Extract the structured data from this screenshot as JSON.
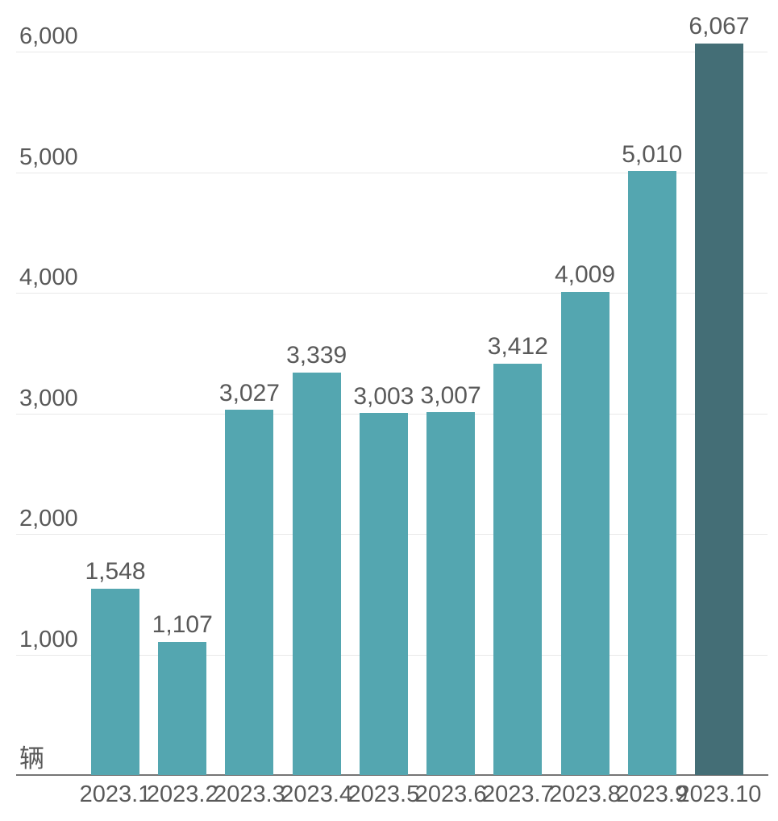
{
  "chart_data": {
    "type": "bar",
    "categories": [
      "2023.1",
      "2023.2",
      "2023.3",
      "2023.4",
      "2023.5",
      "2023.6",
      "2023.7",
      "2023.8",
      "2023.9",
      "2023.10"
    ],
    "values": [
      1548,
      1107,
      3027,
      3339,
      3003,
      3007,
      3412,
      4009,
      5010,
      6067
    ],
    "value_labels": [
      "1,548",
      "1,107",
      "3,027",
      "3,339",
      "3,003",
      "3,007",
      "3,412",
      "4,009",
      "5,010",
      "6,067"
    ],
    "title": "",
    "xlabel": "",
    "ylabel": "辆",
    "ylim": [
      0,
      6400
    ],
    "yticks": [
      1000,
      2000,
      3000,
      4000,
      5000,
      6000
    ],
    "ytick_labels": [
      "1,000",
      "2,000",
      "3,000",
      "4,000",
      "5,000",
      "6,000"
    ],
    "grid": true,
    "legend_position": "none",
    "colors": {
      "bar": "#54A6B0",
      "highlight_bar": "#446E76",
      "highlight_index": 9,
      "text": "#595959",
      "gridline": "#E8E8E8",
      "axis_line": "#757575",
      "background": "#FFFFFF"
    }
  }
}
